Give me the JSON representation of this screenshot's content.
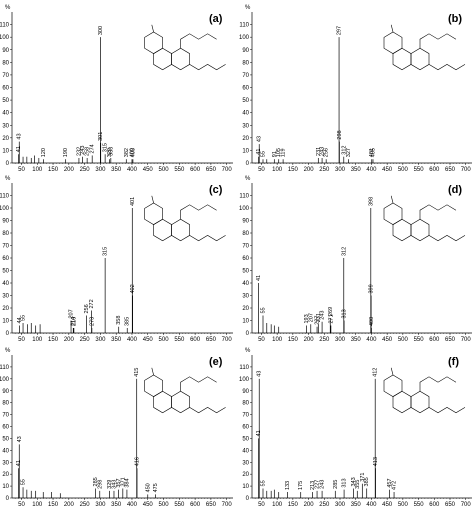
{
  "chart_data": [
    {
      "type": "bar",
      "panel_label": "(a)",
      "y_unit_label": "%",
      "xlim": [
        20,
        720
      ],
      "ylim": [
        0,
        120
      ],
      "x_ticks": [
        "50",
        "100",
        "150",
        "200",
        "250",
        "300",
        "350",
        "400",
        "450",
        "500",
        "550",
        "600",
        "650",
        "700"
      ],
      "y_ticks": [
        "0",
        "10",
        "20",
        "30",
        "40",
        "50",
        "60",
        "70",
        "80",
        "90",
        "100",
        "110"
      ],
      "peaks": [
        {
          "x": 41,
          "y": 7,
          "label": "41"
        },
        {
          "x": 43,
          "y": 17,
          "label": "43"
        },
        {
          "x": 55,
          "y": 5,
          "label": ""
        },
        {
          "x": 67,
          "y": 5,
          "label": ""
        },
        {
          "x": 81,
          "y": 4,
          "label": ""
        },
        {
          "x": 91,
          "y": 6,
          "label": ""
        },
        {
          "x": 105,
          "y": 4,
          "label": ""
        },
        {
          "x": 120,
          "y": 3,
          "label": "120"
        },
        {
          "x": 190,
          "y": 3,
          "label": "190"
        },
        {
          "x": 232,
          "y": 4,
          "label": "232"
        },
        {
          "x": 243,
          "y": 5,
          "label": "243"
        },
        {
          "x": 258,
          "y": 4,
          "label": "258"
        },
        {
          "x": 274,
          "y": 6,
          "label": "274"
        },
        {
          "x": 300,
          "y": 100,
          "label": "300"
        },
        {
          "x": 301,
          "y": 16,
          "label": "301"
        },
        {
          "x": 315,
          "y": 7,
          "label": "315"
        },
        {
          "x": 329,
          "y": 3,
          "label": "329"
        },
        {
          "x": 333,
          "y": 4,
          "label": "333"
        },
        {
          "x": 382,
          "y": 3,
          "label": "382"
        },
        {
          "x": 400,
          "y": 3,
          "label": "400"
        },
        {
          "x": 403,
          "y": 3,
          "label": "403"
        }
      ]
    },
    {
      "type": "bar",
      "panel_label": "(b)",
      "y_unit_label": "%",
      "xlim": [
        20,
        720
      ],
      "ylim": [
        0,
        120
      ],
      "x_ticks": [
        "50",
        "100",
        "150",
        "200",
        "250",
        "300",
        "350",
        "400",
        "450",
        "500",
        "550",
        "600",
        "650",
        "700"
      ],
      "y_ticks": [
        "0",
        "10",
        "20",
        "30",
        "40",
        "50",
        "60",
        "70",
        "80",
        "90",
        "100",
        "110"
      ],
      "peaks": [
        {
          "x": 41,
          "y": 5,
          "label": "41"
        },
        {
          "x": 43,
          "y": 15,
          "label": "43"
        },
        {
          "x": 55,
          "y": 3,
          "label": "55"
        },
        {
          "x": 67,
          "y": 3,
          "label": ""
        },
        {
          "x": 91,
          "y": 3,
          "label": "91"
        },
        {
          "x": 105,
          "y": 3,
          "label": "105"
        },
        {
          "x": 119,
          "y": 3,
          "label": "119"
        },
        {
          "x": 231,
          "y": 4,
          "label": "231"
        },
        {
          "x": 243,
          "y": 4,
          "label": "243"
        },
        {
          "x": 256,
          "y": 3,
          "label": "256"
        },
        {
          "x": 297,
          "y": 100,
          "label": "297"
        },
        {
          "x": 298,
          "y": 17,
          "label": "298"
        },
        {
          "x": 312,
          "y": 5,
          "label": "312"
        },
        {
          "x": 327,
          "y": 3,
          "label": "327"
        },
        {
          "x": 401,
          "y": 3,
          "label": "401"
        },
        {
          "x": 405,
          "y": 3,
          "label": "405"
        }
      ]
    },
    {
      "type": "bar",
      "panel_label": "(c)",
      "y_unit_label": "%",
      "xlim": [
        20,
        720
      ],
      "ylim": [
        0,
        120
      ],
      "x_ticks": [
        "50",
        "100",
        "150",
        "200",
        "250",
        "300",
        "350",
        "400",
        "450",
        "500",
        "550",
        "600",
        "650",
        "700"
      ],
      "y_ticks": [
        "0",
        "10",
        "20",
        "30",
        "40",
        "50",
        "60",
        "70",
        "80",
        "90",
        "100",
        "110"
      ],
      "peaks": [
        {
          "x": 44,
          "y": 6,
          "label": "44"
        },
        {
          "x": 55,
          "y": 8,
          "label": "55"
        },
        {
          "x": 69,
          "y": 7,
          "label": ""
        },
        {
          "x": 81,
          "y": 8,
          "label": ""
        },
        {
          "x": 95,
          "y": 6,
          "label": ""
        },
        {
          "x": 109,
          "y": 7,
          "label": ""
        },
        {
          "x": 207,
          "y": 10,
          "label": "207"
        },
        {
          "x": 214,
          "y": 4,
          "label": "214"
        },
        {
          "x": 216,
          "y": 4,
          "label": "216"
        },
        {
          "x": 256,
          "y": 14,
          "label": "256"
        },
        {
          "x": 272,
          "y": 18,
          "label": "272"
        },
        {
          "x": 273,
          "y": 4,
          "label": "273"
        },
        {
          "x": 315,
          "y": 60,
          "label": "315"
        },
        {
          "x": 358,
          "y": 5,
          "label": "358"
        },
        {
          "x": 385,
          "y": 4,
          "label": "385"
        },
        {
          "x": 401,
          "y": 100,
          "label": "401"
        },
        {
          "x": 402,
          "y": 30,
          "label": "402"
        }
      ]
    },
    {
      "type": "bar",
      "panel_label": "(d)",
      "y_unit_label": "%",
      "xlim": [
        20,
        720
      ],
      "ylim": [
        0,
        120
      ],
      "x_ticks": [
        "50",
        "100",
        "150",
        "200",
        "250",
        "300",
        "350",
        "400",
        "450",
        "500",
        "550",
        "600",
        "650",
        "700"
      ],
      "y_ticks": [
        "0",
        "10",
        "20",
        "30",
        "40",
        "50",
        "60",
        "70",
        "80",
        "90",
        "100",
        "110"
      ],
      "peaks": [
        {
          "x": 41,
          "y": 40,
          "label": "41"
        },
        {
          "x": 55,
          "y": 14,
          "label": "55"
        },
        {
          "x": 67,
          "y": 8,
          "label": ""
        },
        {
          "x": 81,
          "y": 7,
          "label": ""
        },
        {
          "x": 91,
          "y": 6,
          "label": ""
        },
        {
          "x": 105,
          "y": 5,
          "label": ""
        },
        {
          "x": 193,
          "y": 6,
          "label": "193"
        },
        {
          "x": 207,
          "y": 7,
          "label": "207"
        },
        {
          "x": 227,
          "y": 5,
          "label": "227"
        },
        {
          "x": 231,
          "y": 7,
          "label": "231"
        },
        {
          "x": 243,
          "y": 9,
          "label": "243"
        },
        {
          "x": 269,
          "y": 12,
          "label": "269"
        },
        {
          "x": 271,
          "y": 6,
          "label": "271"
        },
        {
          "x": 313,
          "y": 10,
          "label": "313"
        },
        {
          "x": 312,
          "y": 60,
          "label": "312"
        },
        {
          "x": 398,
          "y": 100,
          "label": "398"
        },
        {
          "x": 399,
          "y": 30,
          "label": "399"
        },
        {
          "x": 400,
          "y": 4,
          "label": "400"
        }
      ]
    },
    {
      "type": "bar",
      "panel_label": "(e)",
      "y_unit_label": "%",
      "xlim": [
        20,
        720
      ],
      "ylim": [
        0,
        120
      ],
      "x_ticks": [
        "50",
        "100",
        "150",
        "200",
        "250",
        "300",
        "350",
        "400",
        "450",
        "500",
        "550",
        "600",
        "650",
        "700"
      ],
      "y_ticks": [
        "0",
        "10",
        "20",
        "30",
        "40",
        "50",
        "60",
        "70",
        "80",
        "90",
        "100",
        "110"
      ],
      "peaks": [
        {
          "x": 41,
          "y": 25,
          "label": "41"
        },
        {
          "x": 43,
          "y": 45,
          "label": "43"
        },
        {
          "x": 55,
          "y": 9,
          "label": "55"
        },
        {
          "x": 67,
          "y": 7,
          "label": ""
        },
        {
          "x": 81,
          "y": 6,
          "label": ""
        },
        {
          "x": 95,
          "y": 6,
          "label": ""
        },
        {
          "x": 119,
          "y": 5,
          "label": ""
        },
        {
          "x": 145,
          "y": 5,
          "label": ""
        },
        {
          "x": 173,
          "y": 4,
          "label": ""
        },
        {
          "x": 285,
          "y": 8,
          "label": "285"
        },
        {
          "x": 298,
          "y": 6,
          "label": "298"
        },
        {
          "x": 329,
          "y": 6,
          "label": "329"
        },
        {
          "x": 343,
          "y": 6,
          "label": "343"
        },
        {
          "x": 357,
          "y": 7,
          "label": "357"
        },
        {
          "x": 371,
          "y": 8,
          "label": "371"
        },
        {
          "x": 384,
          "y": 7,
          "label": "384"
        },
        {
          "x": 415,
          "y": 100,
          "label": "415"
        },
        {
          "x": 416,
          "y": 25,
          "label": "416"
        },
        {
          "x": 450,
          "y": 3,
          "label": "450"
        },
        {
          "x": 475,
          "y": 3,
          "label": "475"
        }
      ]
    },
    {
      "type": "bar",
      "panel_label": "(f)",
      "y_unit_label": "%",
      "xlim": [
        20,
        720
      ],
      "ylim": [
        0,
        120
      ],
      "x_ticks": [
        "50",
        "100",
        "150",
        "200",
        "250",
        "300",
        "350",
        "400",
        "450",
        "500",
        "550",
        "600",
        "650",
        "700"
      ],
      "y_ticks": [
        "0",
        "10",
        "20",
        "30",
        "40",
        "50",
        "60",
        "70",
        "80",
        "90",
        "100",
        "110"
      ],
      "peaks": [
        {
          "x": 41,
          "y": 50,
          "label": "41"
        },
        {
          "x": 43,
          "y": 100,
          "label": "43"
        },
        {
          "x": 55,
          "y": 8,
          "label": "55"
        },
        {
          "x": 67,
          "y": 6,
          "label": ""
        },
        {
          "x": 81,
          "y": 6,
          "label": ""
        },
        {
          "x": 91,
          "y": 7,
          "label": ""
        },
        {
          "x": 105,
          "y": 5,
          "label": ""
        },
        {
          "x": 133,
          "y": 5,
          "label": "133"
        },
        {
          "x": 175,
          "y": 5,
          "label": "175"
        },
        {
          "x": 213,
          "y": 5,
          "label": "213"
        },
        {
          "x": 227,
          "y": 6,
          "label": "227"
        },
        {
          "x": 243,
          "y": 6,
          "label": "243"
        },
        {
          "x": 285,
          "y": 6,
          "label": "285"
        },
        {
          "x": 313,
          "y": 7,
          "label": "313"
        },
        {
          "x": 343,
          "y": 8,
          "label": "343"
        },
        {
          "x": 355,
          "y": 6,
          "label": "355"
        },
        {
          "x": 371,
          "y": 12,
          "label": "371"
        },
        {
          "x": 385,
          "y": 8,
          "label": "385"
        },
        {
          "x": 412,
          "y": 100,
          "label": "412"
        },
        {
          "x": 413,
          "y": 25,
          "label": "413"
        },
        {
          "x": 457,
          "y": 7,
          "label": "457"
        },
        {
          "x": 472,
          "y": 5,
          "label": "472"
        }
      ]
    }
  ]
}
